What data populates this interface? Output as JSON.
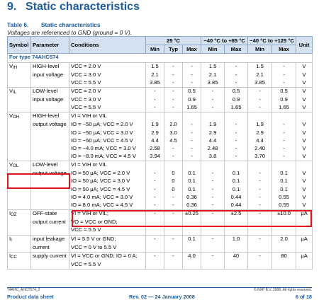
{
  "section": {
    "number": "9.",
    "title": "Static characteristics"
  },
  "table": {
    "label": "Table 6.",
    "title": "Static characteristics",
    "subcaption": "Voltages are referenced to GND (ground = 0 V).",
    "headers": {
      "symbol": "Symbol",
      "parameter": "Parameter",
      "conditions": "Conditions",
      "group1": "25 °C",
      "group2": "−40 °C to +85 °C",
      "group3": "−40 °C to +125 °C",
      "unit": "Unit",
      "min1": "Min",
      "typ1": "Typ",
      "max1": "Max",
      "min2": "Min",
      "max2": "Max",
      "min3": "Min",
      "max3": "Max"
    },
    "type_row": "For type 74AHC574",
    "rows": [
      {
        "sym": "V",
        "sub": "IH",
        "param": "HIGH-level",
        "cond": "VCC = 2.0 V",
        "v": [
          "1.5",
          "-",
          "-",
          "1.5",
          "-",
          "1.5",
          "-"
        ],
        "unit": "V",
        "sep": true
      },
      {
        "sym": "",
        "sub": "",
        "param": "input voltage",
        "cond": "VCC = 3.0 V",
        "v": [
          "2.1",
          "-",
          "-",
          "2.1",
          "-",
          "2.1",
          "-"
        ],
        "unit": "V"
      },
      {
        "sym": "",
        "sub": "",
        "param": "",
        "cond": "VCC = 5.5 V",
        "v": [
          "3.85",
          "-",
          "-",
          "3.85",
          "-",
          "3.85",
          "-"
        ],
        "unit": "V"
      },
      {
        "sym": "V",
        "sub": "IL",
        "param": "LOW-level",
        "cond": "VCC = 2.0 V",
        "v": [
          "-",
          "-",
          "0.5",
          "-",
          "0.5",
          "-",
          "0.5"
        ],
        "unit": "V",
        "sep": true
      },
      {
        "sym": "",
        "sub": "",
        "param": "input voltage",
        "cond": "VCC = 3.0 V",
        "v": [
          "-",
          "-",
          "0.9",
          "-",
          "0.9",
          "-",
          "0.9"
        ],
        "unit": "V"
      },
      {
        "sym": "",
        "sub": "",
        "param": "",
        "cond": "VCC = 5.5 V",
        "v": [
          "-",
          "-",
          "1.65",
          "-",
          "1.65",
          "-",
          "1.65"
        ],
        "unit": "V"
      },
      {
        "sym": "V",
        "sub": "OH",
        "param": "HIGH-level",
        "cond": "VI = VIH or VIL",
        "v": [
          "",
          "",
          "",
          "",
          "",
          "",
          ""
        ],
        "unit": "",
        "sep": true
      },
      {
        "sym": "",
        "sub": "",
        "param": "output voltage",
        "cond": "IO = −50 μA; VCC = 2.0 V",
        "v": [
          "1.9",
          "2.0",
          "-",
          "1.9",
          "-",
          "1.9",
          "-"
        ],
        "unit": "V"
      },
      {
        "sym": "",
        "sub": "",
        "param": "",
        "cond": "IO = −50 μA; VCC = 3.0 V",
        "v": [
          "2.9",
          "3.0",
          "-",
          "2.9",
          "-",
          "2.9",
          "-"
        ],
        "unit": "V"
      },
      {
        "sym": "",
        "sub": "",
        "param": "",
        "cond": "IO = −50 μA; VCC = 4.5 V",
        "v": [
          "4.4",
          "4.5",
          "-",
          "4.4",
          "-",
          "4.4",
          "-"
        ],
        "unit": "V"
      },
      {
        "sym": "",
        "sub": "",
        "param": "",
        "cond": "IO = −4.0 mA; VCC = 3.0 V",
        "v": [
          "2.58",
          "-",
          "-",
          "2.48",
          "-",
          "2.40",
          "-"
        ],
        "unit": "V"
      },
      {
        "sym": "",
        "sub": "",
        "param": "",
        "cond": "IO = −8.0 mA; VCC = 4.5 V",
        "v": [
          "3.94",
          "-",
          "-",
          "3.8",
          "-",
          "3.70",
          "-"
        ],
        "unit": "V"
      },
      {
        "sym": "V",
        "sub": "OL",
        "param": "LOW-level",
        "cond": "VI = VIH or VIL",
        "v": [
          "",
          "",
          "",
          "",
          "",
          "",
          ""
        ],
        "unit": "",
        "sep": true
      },
      {
        "sym": "",
        "sub": "",
        "param": "output voltage",
        "cond": "IO = 50 μA; VCC = 2.0 V",
        "v": [
          "-",
          "0",
          "0.1",
          "-",
          "0.1",
          "-",
          "0.1"
        ],
        "unit": "V"
      },
      {
        "sym": "",
        "sub": "",
        "param": "",
        "cond": "IO = 50 μA; VCC = 3.0 V",
        "v": [
          "-",
          "0",
          "0.1",
          "-",
          "0.1",
          "-",
          "0.1"
        ],
        "unit": "V"
      },
      {
        "sym": "",
        "sub": "",
        "param": "",
        "cond": "IO = 50 μA; VCC = 4.5 V",
        "v": [
          "-",
          "0",
          "0.1",
          "-",
          "0.1",
          "-",
          "0.1"
        ],
        "unit": "V"
      },
      {
        "sym": "",
        "sub": "",
        "param": "",
        "cond": "IO = 4.0 mA; VCC = 3.0 V",
        "v": [
          "-",
          "-",
          "0.36",
          "-",
          "0.44",
          "-",
          "0.55"
        ],
        "unit": "V"
      },
      {
        "sym": "",
        "sub": "",
        "param": "",
        "cond": "IO = 8.0 mA; VCC = 4.5 V",
        "v": [
          "-",
          "-",
          "0.36",
          "-",
          "0.44",
          "-",
          "0.55"
        ],
        "unit": "V"
      },
      {
        "sym": "I",
        "sub": "OZ",
        "param": "OFF-state",
        "cond": "VI = VIH or VIL;",
        "v": [
          "-",
          "-",
          "±0.25",
          "-",
          "±2.5",
          "-",
          "±10.0"
        ],
        "unit": "μA",
        "sep": true
      },
      {
        "sym": "",
        "sub": "",
        "param": "output current",
        "cond": "VO = VCC or GND;",
        "v": [
          "",
          "",
          "",
          "",
          "",
          "",
          ""
        ],
        "unit": ""
      },
      {
        "sym": "",
        "sub": "",
        "param": "",
        "cond": "VCC = 5.5 V",
        "v": [
          "",
          "",
          "",
          "",
          "",
          "",
          ""
        ],
        "unit": ""
      },
      {
        "sym": "I",
        "sub": "I",
        "param": "input leakage",
        "cond": "VI = 5.5 V or GND;",
        "v": [
          "-",
          "-",
          "0.1",
          "-",
          "1.0",
          "-",
          "2.0"
        ],
        "unit": "μA",
        "sep": true
      },
      {
        "sym": "",
        "sub": "",
        "param": "current",
        "cond": "VCC = 0 V to 5.5 V",
        "v": [
          "",
          "",
          "",
          "",
          "",
          "",
          ""
        ],
        "unit": ""
      },
      {
        "sym": "I",
        "sub": "CC",
        "param": "supply current",
        "cond": "VI = VCC or GND; IO = 0 A;",
        "v": [
          "-",
          "-",
          "4.0",
          "-",
          "40",
          "-",
          "80"
        ],
        "unit": "μA",
        "sep": true
      },
      {
        "sym": "",
        "sub": "",
        "param": "",
        "cond": "VCC = 5.5 V",
        "v": [
          "",
          "",
          "",
          "",
          "",
          "",
          ""
        ],
        "unit": ""
      }
    ]
  },
  "footer": {
    "doc_id": "74AHC_AHCT574_2",
    "copyright": "© NXP B.V. 2008. All rights reserved.",
    "left": "Product data sheet",
    "center": "Rev. 02 — 24 January 2008",
    "right": "6 of 18"
  },
  "highlight_color": "#e0151c",
  "accent_color": "#1b5ba3"
}
